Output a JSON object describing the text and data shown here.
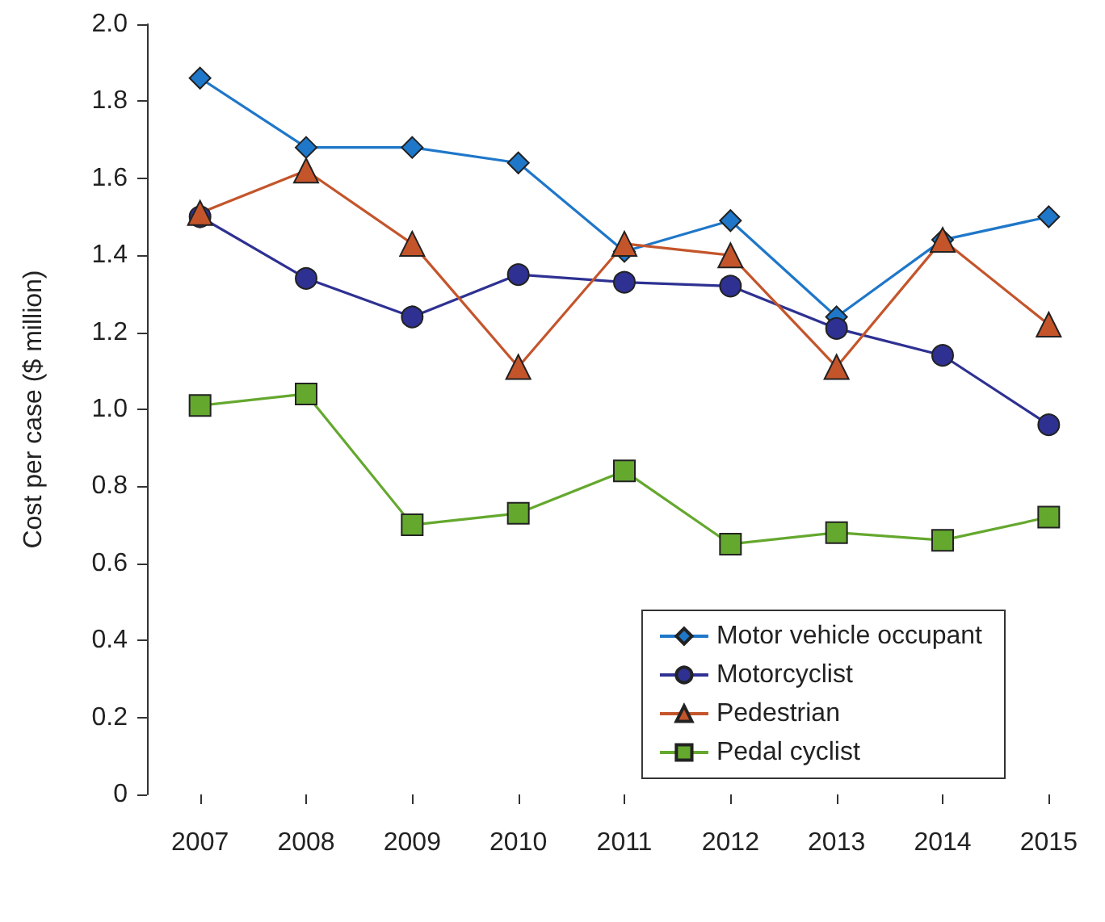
{
  "chart_data": {
    "type": "line",
    "ylabel": "Cost per case ($ million)",
    "categories": [
      "2007",
      "2008",
      "2009",
      "2010",
      "2011",
      "2012",
      "2013",
      "2014",
      "2015"
    ],
    "series": [
      {
        "name": "Motor vehicle occupant",
        "color": "#1f77c9",
        "marker": "diamond",
        "values": [
          1.86,
          1.68,
          1.68,
          1.64,
          1.41,
          1.49,
          1.24,
          1.44,
          1.5
        ]
      },
      {
        "name": "Motorcyclist",
        "color": "#2e3192",
        "marker": "circle",
        "values": [
          1.5,
          1.34,
          1.24,
          1.35,
          1.33,
          1.32,
          1.21,
          1.14,
          0.96
        ]
      },
      {
        "name": "Pedestrian",
        "color": "#c4552b",
        "marker": "triangle",
        "values": [
          1.51,
          1.62,
          1.43,
          1.11,
          1.43,
          1.4,
          1.11,
          1.44,
          1.22
        ]
      },
      {
        "name": "Pedal cyclist",
        "color": "#64a82e",
        "marker": "square",
        "values": [
          1.01,
          1.04,
          0.7,
          0.73,
          0.84,
          0.65,
          0.68,
          0.66,
          0.72
        ]
      }
    ],
    "ylim": [
      0,
      2
    ],
    "yticks": [
      0,
      0.2,
      0.4,
      0.6,
      0.8,
      {
        "value": 1,
        "label": "1.0"
      },
      1.2,
      1.4,
      1.6,
      1.8,
      {
        "value": 2,
        "label": "2.0"
      }
    ],
    "grid": false,
    "legend": "bottom right",
    "line_style": "solid"
  }
}
